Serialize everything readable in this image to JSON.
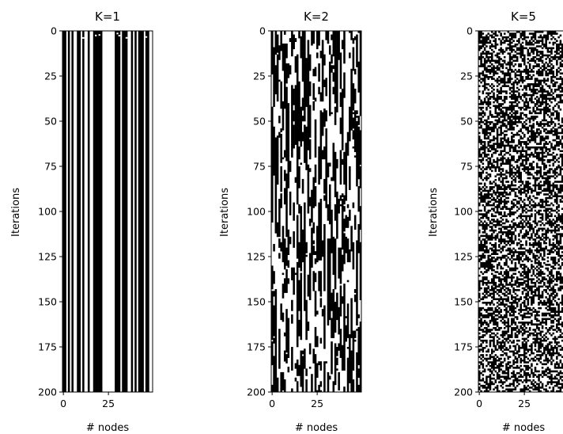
{
  "chart_data": [
    {
      "type": "heatmap",
      "title": "K=1",
      "xlabel": "# nodes",
      "ylabel": "Iterations",
      "xticks": [
        "0",
        "25"
      ],
      "yticks": [
        "0",
        "25",
        "50",
        "75",
        "100",
        "125",
        "150",
        "175",
        "200"
      ],
      "xlim": [
        0,
        50
      ],
      "ylim": [
        200,
        0
      ],
      "colors": [
        "#ffffff",
        "#000000"
      ],
      "pattern": "constant columns: each node keeps its value across iterations",
      "columns": [
        1,
        1,
        0,
        1,
        0,
        1,
        0,
        0,
        1,
        1,
        0,
        1,
        0,
        0,
        1,
        0,
        0,
        1,
        1,
        1,
        1,
        1,
        0,
        0,
        0,
        0,
        0,
        0,
        0,
        1,
        1,
        1,
        0,
        1,
        1,
        1,
        0,
        0,
        1,
        0,
        1,
        0,
        1,
        1,
        1,
        0,
        1,
        1,
        0,
        0
      ]
    },
    {
      "type": "heatmap",
      "title": "K=2",
      "xlabel": "# nodes",
      "ylabel": "Iterations",
      "xticks": [
        "0",
        "25"
      ],
      "yticks": [
        "0",
        "25",
        "50",
        "75",
        "100",
        "125",
        "150",
        "175",
        "200"
      ],
      "xlim": [
        0,
        50
      ],
      "ylim": [
        200,
        0
      ],
      "colors": [
        "#ffffff",
        "#000000"
      ],
      "pattern": "mostly constant columns with intermittent flips"
    },
    {
      "type": "heatmap",
      "title": "K=5",
      "xlabel": "# nodes",
      "ylabel": "Iterations",
      "xticks": [
        "0",
        "25"
      ],
      "yticks": [
        "0",
        "25",
        "50",
        "75",
        "100",
        "125",
        "150",
        "175",
        "200"
      ],
      "xlim": [
        0,
        50
      ],
      "ylim": [
        200,
        0
      ],
      "colors": [
        "#ffffff",
        "#000000"
      ],
      "pattern": "random binary noise across nodes and iterations"
    }
  ]
}
